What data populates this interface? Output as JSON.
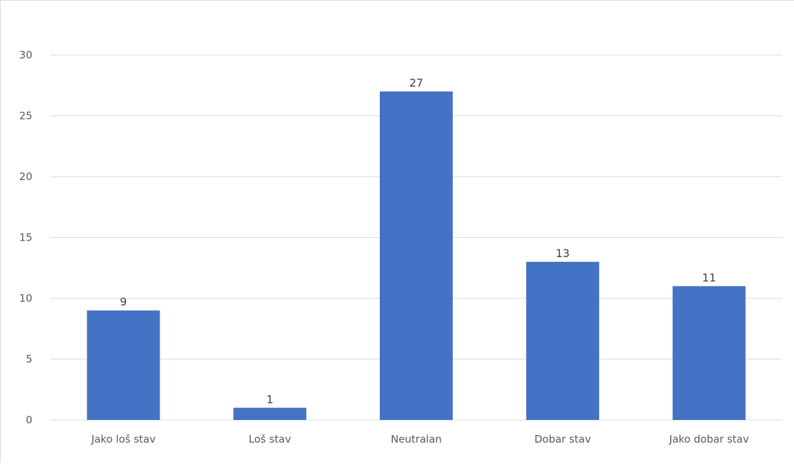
{
  "chart_data": {
    "type": "bar",
    "categories": [
      "Jako loš stav",
      "Loš stav",
      "Neutralan",
      "Dobar stav",
      "Jako dobar stav"
    ],
    "values": [
      9,
      1,
      27,
      13,
      11
    ],
    "data_labels": [
      "9",
      "1",
      "27",
      "13",
      "11"
    ],
    "title": "",
    "xlabel": "",
    "ylabel": "",
    "ylim": [
      0,
      30
    ],
    "yticks": [
      0,
      5,
      10,
      15,
      20,
      25,
      30
    ],
    "grid": true,
    "legend": "none",
    "bar_color": "#4472c4"
  }
}
